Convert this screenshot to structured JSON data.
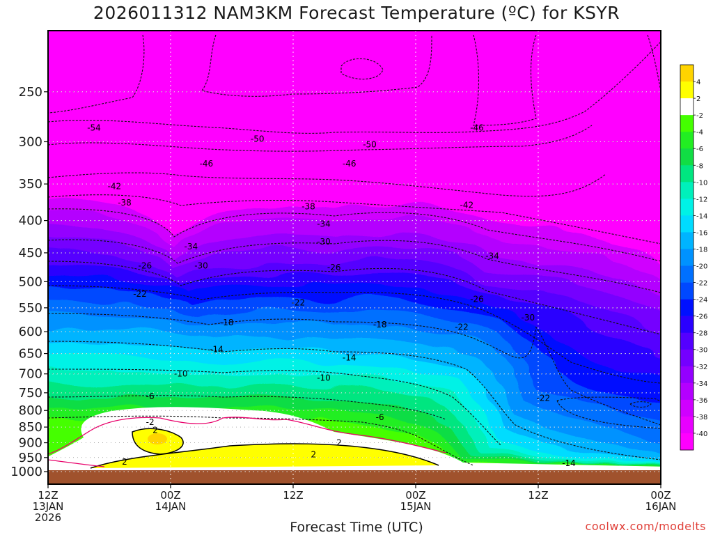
{
  "chart_data": {
    "type": "heatmap",
    "title": "2026011312 NAM3KM Forecast Temperature (ºC) for KSYR",
    "xlabel": "Forecast Time (UTC)",
    "ylabel": "",
    "y_scale": "log-pressure",
    "ylim_hPa": [
      1000,
      200
    ],
    "y_ticks": [
      "250",
      "300",
      "350",
      "400",
      "450",
      "500",
      "550",
      "600",
      "650",
      "700",
      "750",
      "800",
      "850",
      "900",
      "950",
      "1000"
    ],
    "x_ticks": [
      {
        "time": "2026-01-13T12",
        "lines": [
          "12Z",
          "13JAN",
          "2026"
        ]
      },
      {
        "time": "2026-01-14T00",
        "lines": [
          "00Z",
          "14JAN"
        ]
      },
      {
        "time": "2026-01-14T12",
        "lines": [
          "12Z"
        ]
      },
      {
        "time": "2026-01-15T00",
        "lines": [
          "00Z",
          "15JAN"
        ]
      },
      {
        "time": "2026-01-15T12",
        "lines": [
          "12Z"
        ]
      },
      {
        "time": "2026-01-16T00",
        "lines": [
          "00Z",
          "16JAN"
        ]
      }
    ],
    "grid": true,
    "legend": "right",
    "colorbar": [
      {
        "range": [
          4,
          6
        ],
        "color": "#ffd400",
        "label": ""
      },
      {
        "range": [
          2,
          4
        ],
        "color": "#ffff00",
        "label": "4"
      },
      {
        "range": [
          -2,
          2
        ],
        "color": "#ffffff",
        "label": "2"
      },
      {
        "range": [
          -4,
          -2
        ],
        "color": "#44ff00",
        "label": "-2"
      },
      {
        "range": [
          -6,
          -4
        ],
        "color": "#22ee22",
        "label": "-4"
      },
      {
        "range": [
          -8,
          -6
        ],
        "color": "#11dd44",
        "label": "-6"
      },
      {
        "range": [
          -10,
          -8
        ],
        "color": "#00e680",
        "label": "-8"
      },
      {
        "range": [
          -12,
          -10
        ],
        "color": "#00f0bb",
        "label": "-10"
      },
      {
        "range": [
          -14,
          -12
        ],
        "color": "#00f2e6",
        "label": "-12"
      },
      {
        "range": [
          -16,
          -14
        ],
        "color": "#00dcff",
        "label": "-14"
      },
      {
        "range": [
          -18,
          -16
        ],
        "color": "#00b4ff",
        "label": "-16"
      },
      {
        "range": [
          -20,
          -18
        ],
        "color": "#0092ff",
        "label": "-18"
      },
      {
        "range": [
          -22,
          -20
        ],
        "color": "#0070ff",
        "label": "-20"
      },
      {
        "range": [
          -24,
          -22
        ],
        "color": "#0048ff",
        "label": "-22"
      },
      {
        "range": [
          -26,
          -24
        ],
        "color": "#0010ff",
        "label": "-24"
      },
      {
        "range": [
          -28,
          -26
        ],
        "color": "#2a00ff",
        "label": "-26"
      },
      {
        "range": [
          -30,
          -28
        ],
        "color": "#5400ff",
        "label": "-28"
      },
      {
        "range": [
          -32,
          -30
        ],
        "color": "#7400ff",
        "label": "-30"
      },
      {
        "range": [
          -34,
          -32
        ],
        "color": "#9400ff",
        "label": "-32"
      },
      {
        "range": [
          -36,
          -34
        ],
        "color": "#b400ff",
        "label": "-34"
      },
      {
        "range": [
          -38,
          -36
        ],
        "color": "#d000ff",
        "label": "-36"
      },
      {
        "range": [
          -40,
          -38
        ],
        "color": "#e800ff",
        "label": "-38"
      },
      {
        "range": [
          -42,
          -40
        ],
        "color": "#ff00ff",
        "label": "-40"
      }
    ],
    "contour_labels": [
      {
        "text": "-54",
        "time": 4.5,
        "hPa": 285
      },
      {
        "text": "-50",
        "time": 20.5,
        "hPa": 297
      },
      {
        "text": "-50",
        "time": 31.5,
        "hPa": 303
      },
      {
        "text": "-46",
        "time": 42,
        "hPa": 285
      },
      {
        "text": "-46",
        "time": 15.5,
        "hPa": 325
      },
      {
        "text": "-46",
        "time": 29.5,
        "hPa": 325
      },
      {
        "text": "-42",
        "time": 6.5,
        "hPa": 353
      },
      {
        "text": "-42",
        "time": 41,
        "hPa": 378
      },
      {
        "text": "-38",
        "time": 7.5,
        "hPa": 375
      },
      {
        "text": "-38",
        "time": 25.5,
        "hPa": 380
      },
      {
        "text": "-34",
        "time": 27,
        "hPa": 405
      },
      {
        "text": "-34",
        "time": 14,
        "hPa": 440
      },
      {
        "text": "-34",
        "time": 43.5,
        "hPa": 455
      },
      {
        "text": "-30",
        "time": 27,
        "hPa": 432
      },
      {
        "text": "-30",
        "time": 15,
        "hPa": 472
      },
      {
        "text": "-30",
        "time": 47,
        "hPa": 570
      },
      {
        "text": "-26",
        "time": 9.5,
        "hPa": 472
      },
      {
        "text": "-26",
        "time": 28,
        "hPa": 475
      },
      {
        "text": "-26",
        "time": 42,
        "hPa": 533
      },
      {
        "text": "-22",
        "time": 9,
        "hPa": 523
      },
      {
        "text": "-22",
        "time": 24.5,
        "hPa": 540
      },
      {
        "text": "-22",
        "time": 40.5,
        "hPa": 590
      },
      {
        "text": "-22",
        "time": 48.5,
        "hPa": 765
      },
      {
        "text": "-18",
        "time": 17.5,
        "hPa": 580
      },
      {
        "text": "-18",
        "time": 32.5,
        "hPa": 585
      },
      {
        "text": "-14",
        "time": 16.5,
        "hPa": 640
      },
      {
        "text": "-14",
        "time": 29.5,
        "hPa": 660
      },
      {
        "text": "-14",
        "time": 51,
        "hPa": 970
      },
      {
        "text": "-10",
        "time": 13,
        "hPa": 700
      },
      {
        "text": "-10",
        "time": 27,
        "hPa": 710
      },
      {
        "text": "-6",
        "time": 10,
        "hPa": 760
      },
      {
        "text": "-6",
        "time": 32.5,
        "hPa": 820
      },
      {
        "text": "-2",
        "time": 10,
        "hPa": 835
      },
      {
        "text": "2",
        "time": 10.5,
        "hPa": 860
      },
      {
        "text": "2",
        "time": 28.5,
        "hPa": 900
      },
      {
        "text": "2",
        "time": 26,
        "hPa": 940
      },
      {
        "text": "2",
        "time": 7.5,
        "hPa": 965
      }
    ]
  },
  "credit": "coolwx.com/modelts"
}
